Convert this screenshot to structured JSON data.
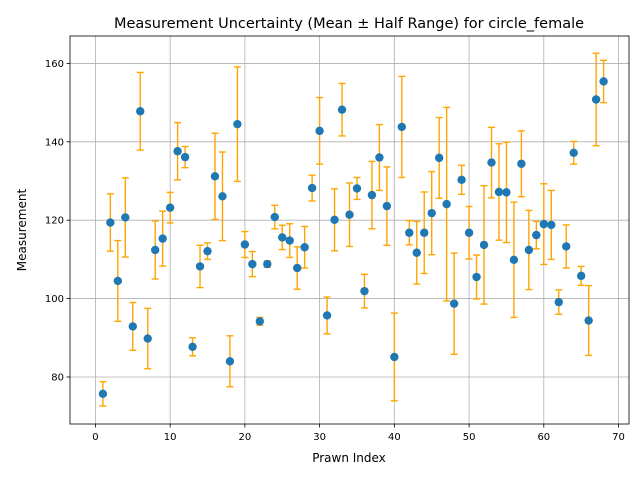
{
  "chart_data": {
    "type": "scatter",
    "title": "Measurement Uncertainty (Mean ± Half Range) for circle_female",
    "xlabel": "Prawn Index",
    "ylabel": "Measurement",
    "xlim": [
      -3.4,
      71.4
    ],
    "ylim": [
      68,
      167
    ],
    "xticks": [
      0,
      10,
      20,
      30,
      40,
      50,
      60,
      70
    ],
    "yticks": [
      80,
      100,
      120,
      140,
      160
    ],
    "grid": true,
    "marker_color": "#1f77b4",
    "errorbar_color": "#ffa500",
    "x": [
      1,
      2,
      3,
      4,
      5,
      6,
      7,
      8,
      9,
      10,
      11,
      12,
      13,
      14,
      15,
      16,
      17,
      18,
      19,
      20,
      21,
      22,
      23,
      24,
      25,
      26,
      27,
      28,
      29,
      30,
      31,
      32,
      33,
      34,
      35,
      36,
      37,
      38,
      39,
      40,
      41,
      42,
      43,
      44,
      45,
      46,
      47,
      48,
      49,
      50,
      51,
      52,
      53,
      54,
      55,
      56,
      57,
      58,
      59,
      60,
      61,
      62,
      63,
      64,
      65,
      66,
      67,
      68
    ],
    "y": [
      75.7,
      119.4,
      104.5,
      120.7,
      92.9,
      147.8,
      89.8,
      112.4,
      115.3,
      123.2,
      137.6,
      136.1,
      87.7,
      108.2,
      112.1,
      131.2,
      126.1,
      84.0,
      144.5,
      113.8,
      108.8,
      94.2,
      108.8,
      120.8,
      115.6,
      114.8,
      107.8,
      113.1,
      128.2,
      142.8,
      95.7,
      120.1,
      148.2,
      121.4,
      128.1,
      101.9,
      126.4,
      136.0,
      123.6,
      85.1,
      143.8,
      116.8,
      111.7,
      116.8,
      121.8,
      135.9,
      124.1,
      98.7,
      130.3,
      116.8,
      105.5,
      113.7,
      134.7,
      127.2,
      127.1,
      109.9,
      134.4,
      112.4,
      116.2,
      119.0,
      118.8,
      99.1,
      113.3,
      137.2,
      105.8,
      94.4,
      150.8,
      155.4
    ],
    "yerr": [
      3.1,
      7.3,
      10.3,
      10.1,
      6.1,
      9.9,
      7.7,
      7.4,
      7.0,
      3.9,
      7.3,
      2.7,
      2.3,
      5.4,
      2.1,
      11.0,
      11.3,
      6.5,
      14.6,
      3.3,
      3.2,
      1.0,
      0.8,
      3.0,
      3.1,
      4.3,
      5.4,
      5.3,
      3.3,
      8.5,
      4.7,
      7.9,
      6.7,
      8.1,
      2.8,
      4.3,
      8.6,
      8.4,
      10.0,
      11.2,
      12.9,
      3.1,
      8.0,
      10.4,
      10.6,
      10.3,
      24.7,
      12.9,
      3.7,
      6.7,
      5.6,
      15.1,
      9.0,
      12.3,
      12.8,
      14.7,
      8.4,
      10.1,
      3.5,
      10.3,
      8.8,
      3.1,
      5.5,
      2.9,
      2.4,
      8.9,
      11.8,
      5.4
    ]
  }
}
